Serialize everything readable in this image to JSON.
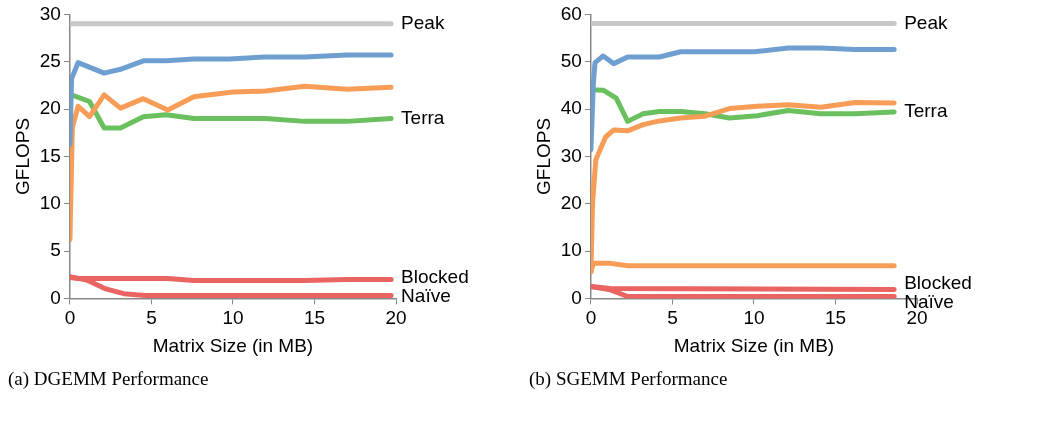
{
  "chart_data": [
    {
      "type": "line",
      "title": "(a) DGEMM Performance",
      "xlabel": "Matrix Size (in MB)",
      "ylabel": "GFLOPS",
      "xlim": [
        0,
        20
      ],
      "xticks": [
        0,
        5,
        10,
        15,
        20
      ],
      "ylim": [
        0,
        30
      ],
      "yticks": [
        0,
        5,
        10,
        15,
        20,
        25,
        30
      ],
      "grid": false,
      "marker": "none",
      "line_style": "solid",
      "series": [
        {
          "name": "Peak",
          "color": "#c8c8c8",
          "x": [
            0,
            19.7
          ],
          "values": [
            29.0,
            29.0
          ]
        },
        {
          "color": "#6f9fd0",
          "x": [
            0,
            0.1,
            0.5,
            2.1,
            3.1,
            4.5,
            5.9,
            7.6,
            9.8,
            12,
            14.4,
            17,
            19.7
          ],
          "values": [
            16.3,
            23.2,
            24.9,
            23.8,
            24.2,
            25.1,
            25.1,
            25.3,
            25.3,
            25.5,
            25.5,
            25.7,
            25.7
          ]
        },
        {
          "color": "#f89d57",
          "x": [
            0,
            0.15,
            0.5,
            1.2,
            2.1,
            3.1,
            4.5,
            6,
            7.6,
            10,
            12,
            14.4,
            17,
            19.7
          ],
          "values": [
            6.2,
            18.1,
            20.3,
            19.2,
            21.5,
            20.1,
            21.1,
            19.9,
            21.3,
            21.8,
            21.9,
            22.4,
            22.1,
            22.3
          ]
        },
        {
          "name": "Terra",
          "color": "#6abf5f",
          "x": [
            0.1,
            1.2,
            2.1,
            3.1,
            4.5,
            5.9,
            7.6,
            12,
            14.4,
            17,
            19.7
          ],
          "values": [
            21.5,
            20.8,
            18.0,
            18.0,
            19.2,
            19.4,
            19.0,
            19.0,
            18.7,
            18.7,
            19.0
          ]
        },
        {
          "name": "Blocked",
          "color": "#ea6462",
          "x": [
            0,
            0.5,
            6,
            7.6,
            14.4,
            17,
            19.7
          ],
          "values": [
            2.2,
            2.1,
            2.1,
            1.9,
            1.9,
            2.0,
            2.0
          ]
        },
        {
          "name": "Naïve",
          "color": "#ea6462",
          "x": [
            0,
            1.1,
            2.2,
            3.3,
            4.6,
            19.7
          ],
          "values": [
            2.3,
            1.9,
            1.0,
            0.5,
            0.3,
            0.3
          ]
        }
      ]
    },
    {
      "type": "line",
      "title": "(b) SGEMM Performance",
      "xlabel": "Matrix Size (in MB)",
      "ylabel": "GFLOPS",
      "xlim": [
        0,
        20
      ],
      "xticks": [
        0,
        5,
        10,
        15,
        20
      ],
      "ylim": [
        0,
        60
      ],
      "yticks": [
        0,
        10,
        20,
        30,
        40,
        50,
        60
      ],
      "grid": false,
      "marker": "none",
      "line_style": "solid",
      "series": [
        {
          "name": "Peak",
          "color": "#c8c8c8",
          "x": [
            0,
            18.6
          ],
          "values": [
            58.1,
            58.1
          ]
        },
        {
          "color": "#6f9fd0",
          "x": [
            0,
            0.15,
            0.25,
            0.75,
            1.4,
            2.25,
            4.2,
            5.5,
            10,
            12.1,
            14.1,
            16.2,
            18.6
          ],
          "values": [
            31.4,
            45.5,
            49.8,
            51.2,
            49.6,
            51.0,
            51.0,
            52.1,
            52.1,
            52.9,
            52.9,
            52.6,
            52.6
          ]
        },
        {
          "color": "#f89d57",
          "x": [
            0,
            0.1,
            0.3,
            0.9,
            1.4,
            2.25,
            3.2,
            4.2,
            5.5,
            7,
            8.5,
            10.2,
            12.1,
            14.1,
            16.2,
            18.6
          ],
          "values": [
            5.6,
            20.1,
            29.3,
            34.1,
            35.6,
            35.4,
            36.7,
            37.5,
            38.1,
            38.5,
            40.1,
            40.6,
            40.9,
            40.4,
            41.4,
            41.3
          ]
        },
        {
          "name": "Terra",
          "color": "#6abf5f",
          "x": [
            0,
            0.75,
            1.55,
            2.25,
            3.2,
            4.2,
            5.5,
            7,
            8.5,
            10.2,
            12.1,
            14.1,
            16.2,
            18.6
          ],
          "values": [
            44.1,
            44.0,
            42.3,
            37.4,
            39.0,
            39.5,
            39.5,
            39.0,
            38.1,
            38.6,
            39.7,
            39.0,
            39.0,
            39.4
          ]
        },
        {
          "color": "#f89d57",
          "x": [
            0,
            0.15,
            1.2,
            2.25,
            18.6
          ],
          "values": [
            5.6,
            7.4,
            7.4,
            6.9,
            6.9
          ]
        },
        {
          "name": "Blocked",
          "color": "#ea6462",
          "x": [
            0,
            1.2,
            18.6
          ],
          "values": [
            2.5,
            2.1,
            1.9
          ]
        },
        {
          "name": "Naïve",
          "color": "#ea6462",
          "x": [
            0,
            1.2,
            2.25,
            18.6
          ],
          "values": [
            2.5,
            1.8,
            0.4,
            0.4
          ]
        }
      ]
    }
  ]
}
